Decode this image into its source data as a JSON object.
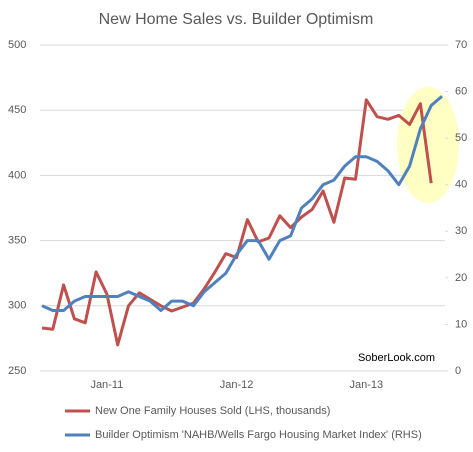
{
  "chart_data": {
    "type": "line",
    "title": "New Home Sales vs. Builder Optimism",
    "categories": [
      null,
      null,
      null,
      null,
      null,
      null,
      "Jan-11",
      null,
      null,
      null,
      null,
      null,
      null,
      null,
      null,
      null,
      null,
      null,
      "Jan-12",
      null,
      null,
      null,
      null,
      null,
      null,
      null,
      null,
      null,
      null,
      null,
      "Jan-13",
      null,
      null,
      null,
      null,
      null,
      null,
      null
    ],
    "series": [
      {
        "name": "New One Family Houses Sold (LHS, thousands)",
        "color": "#c0504d",
        "axis": "y",
        "values": [
          283,
          282,
          316,
          290,
          287,
          326,
          309,
          270,
          300,
          310,
          305,
          300,
          296,
          299,
          302,
          313,
          326,
          340,
          337,
          366,
          349,
          352,
          369,
          360,
          368,
          374,
          388,
          364,
          398,
          397,
          458,
          445,
          443,
          446,
          439,
          455,
          394,
          null
        ]
      },
      {
        "name": "Builder Optimism 'NAHB/Wells Fargo Housing Market Index' (RHS)",
        "color": "#4f81bd",
        "axis": "y2",
        "values": [
          14,
          13,
          13,
          15,
          16,
          16,
          16,
          16,
          17,
          16,
          15,
          13,
          15,
          15,
          14,
          17,
          19,
          21,
          25,
          28,
          28,
          24,
          28,
          29,
          35,
          37,
          40,
          41,
          44,
          46,
          46,
          45,
          43,
          40,
          44,
          52,
          57,
          59
        ]
      }
    ],
    "ylim": [
      250,
      500
    ],
    "yticks": [
      250,
      300,
      350,
      400,
      450,
      500
    ],
    "y2lim": [
      0,
      70
    ],
    "y2ticks": [
      0,
      10,
      20,
      30,
      40,
      50,
      60,
      70
    ],
    "grid": true,
    "annotation": "SoberLook.com"
  }
}
